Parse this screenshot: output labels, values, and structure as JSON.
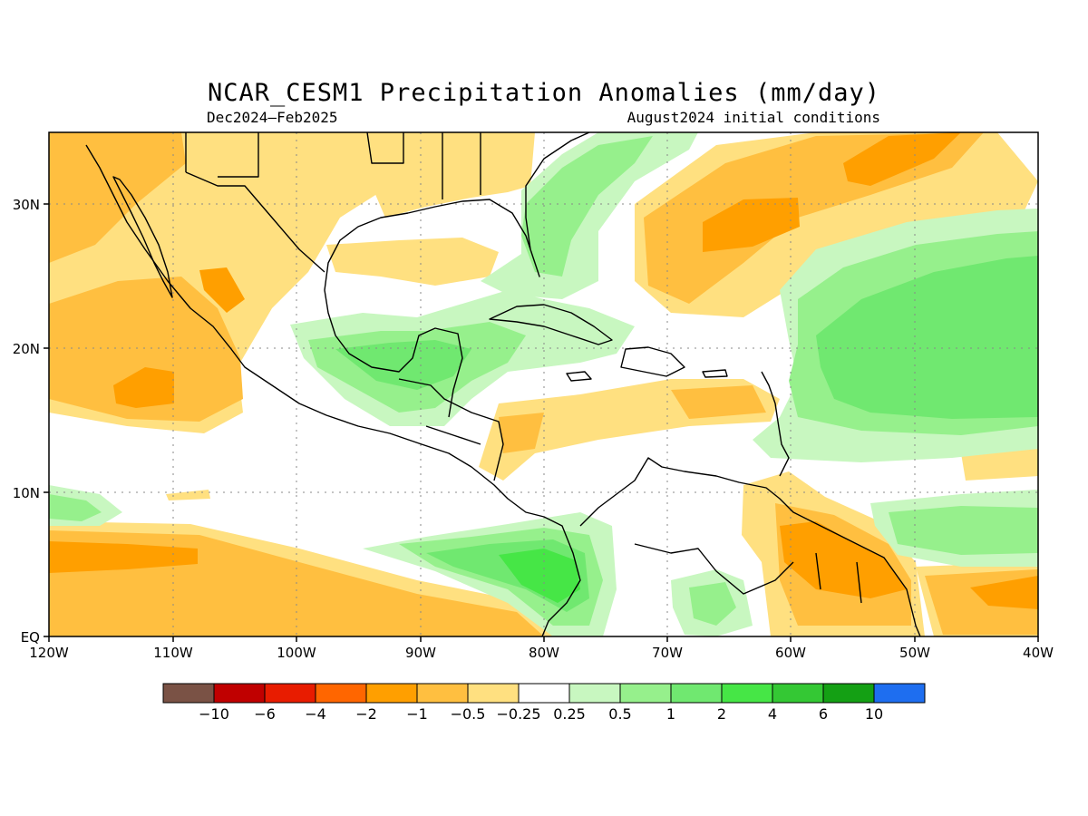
{
  "map": {
    "title": "NCAR_CESM1 Precipitation Anomalies (mm/day)",
    "period": "Dec2024–Feb2025",
    "initial_conditions": "August2024 initial conditions",
    "lon_ticks": [
      "120W",
      "110W",
      "100W",
      "90W",
      "80W",
      "70W",
      "60W",
      "50W",
      "40W"
    ],
    "lat_ticks": [
      "30N",
      "20N",
      "10N",
      "EQ"
    ],
    "colorbar": {
      "colors": [
        "#7a5245",
        "#c00000",
        "#e81c00",
        "#ff6600",
        "#ff9f00",
        "#ffbf40",
        "#ffe080",
        "#ffffff",
        "#c8f7c0",
        "#96f08c",
        "#70e870",
        "#46e646",
        "#34c834",
        "#14a014",
        "#1e6ef0"
      ],
      "labels": [
        "−10",
        "−6",
        "−4",
        "−2",
        "−1",
        "−0.5",
        "−0.25",
        "0.25",
        "0.5",
        "1",
        "2",
        "4",
        "6",
        "10"
      ]
    },
    "colors": {
      "dry_light": "#ffe080",
      "dry_moderate": "#ffbf40",
      "dry_strong": "#ff9f00",
      "wet_light": "#c8f7c0",
      "wet_moderate": "#96f08c",
      "wet_strong": "#70e870",
      "wet_heavy": "#46e646",
      "coastline": "#000000"
    }
  }
}
